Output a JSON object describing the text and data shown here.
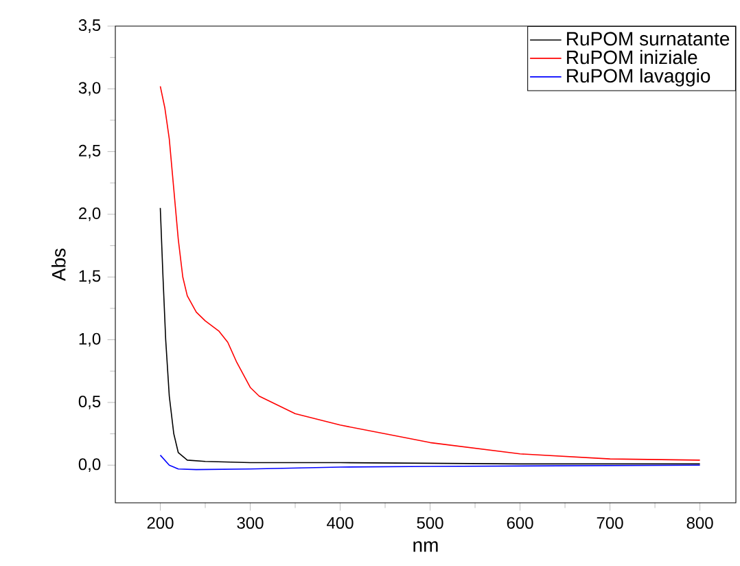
{
  "chart_data": {
    "type": "line",
    "xlabel": "nm",
    "ylabel": "Abs",
    "xlim": [
      150,
      840
    ],
    "ylim": [
      -0.3,
      3.5
    ],
    "xticks": [
      200,
      300,
      400,
      500,
      600,
      700,
      800
    ],
    "yticks": [
      {
        "value": 0,
        "label": "0,0"
      },
      {
        "value": 0.5,
        "label": "0,5"
      },
      {
        "value": 1,
        "label": "1,0"
      },
      {
        "value": 1.5,
        "label": "1,5"
      },
      {
        "value": 2,
        "label": "2,0"
      },
      {
        "value": 2.5,
        "label": "2,5"
      },
      {
        "value": 3,
        "label": "3,0"
      },
      {
        "value": 3.5,
        "label": "3,5"
      }
    ],
    "legend": "top right",
    "grid": false,
    "series": [
      {
        "name": "RuPOM surnatante",
        "color": "#000000",
        "x": [
          200,
          203,
          206,
          210,
          215,
          220,
          230,
          250,
          300,
          400,
          600,
          800
        ],
        "values": [
          2.05,
          1.5,
          1.0,
          0.55,
          0.25,
          0.1,
          0.04,
          0.03,
          0.02,
          0.02,
          0.01,
          0.01
        ]
      },
      {
        "name": "RuPOM iniziale",
        "color": "#ff0000",
        "x": [
          200,
          205,
          210,
          215,
          220,
          225,
          230,
          240,
          250,
          265,
          275,
          285,
          300,
          310,
          330,
          350,
          400,
          450,
          500,
          600,
          700,
          800
        ],
        "values": [
          3.02,
          2.85,
          2.6,
          2.2,
          1.8,
          1.5,
          1.35,
          1.22,
          1.15,
          1.07,
          0.98,
          0.82,
          0.62,
          0.55,
          0.48,
          0.41,
          0.32,
          0.25,
          0.18,
          0.09,
          0.05,
          0.04
        ]
      },
      {
        "name": "RuPOM lavaggio",
        "color": "#0000ff",
        "x": [
          200,
          210,
          220,
          240,
          300,
          400,
          500,
          800
        ],
        "values": [
          0.08,
          0.0,
          -0.03,
          -0.035,
          -0.03,
          -0.015,
          -0.01,
          0.0
        ]
      }
    ]
  }
}
